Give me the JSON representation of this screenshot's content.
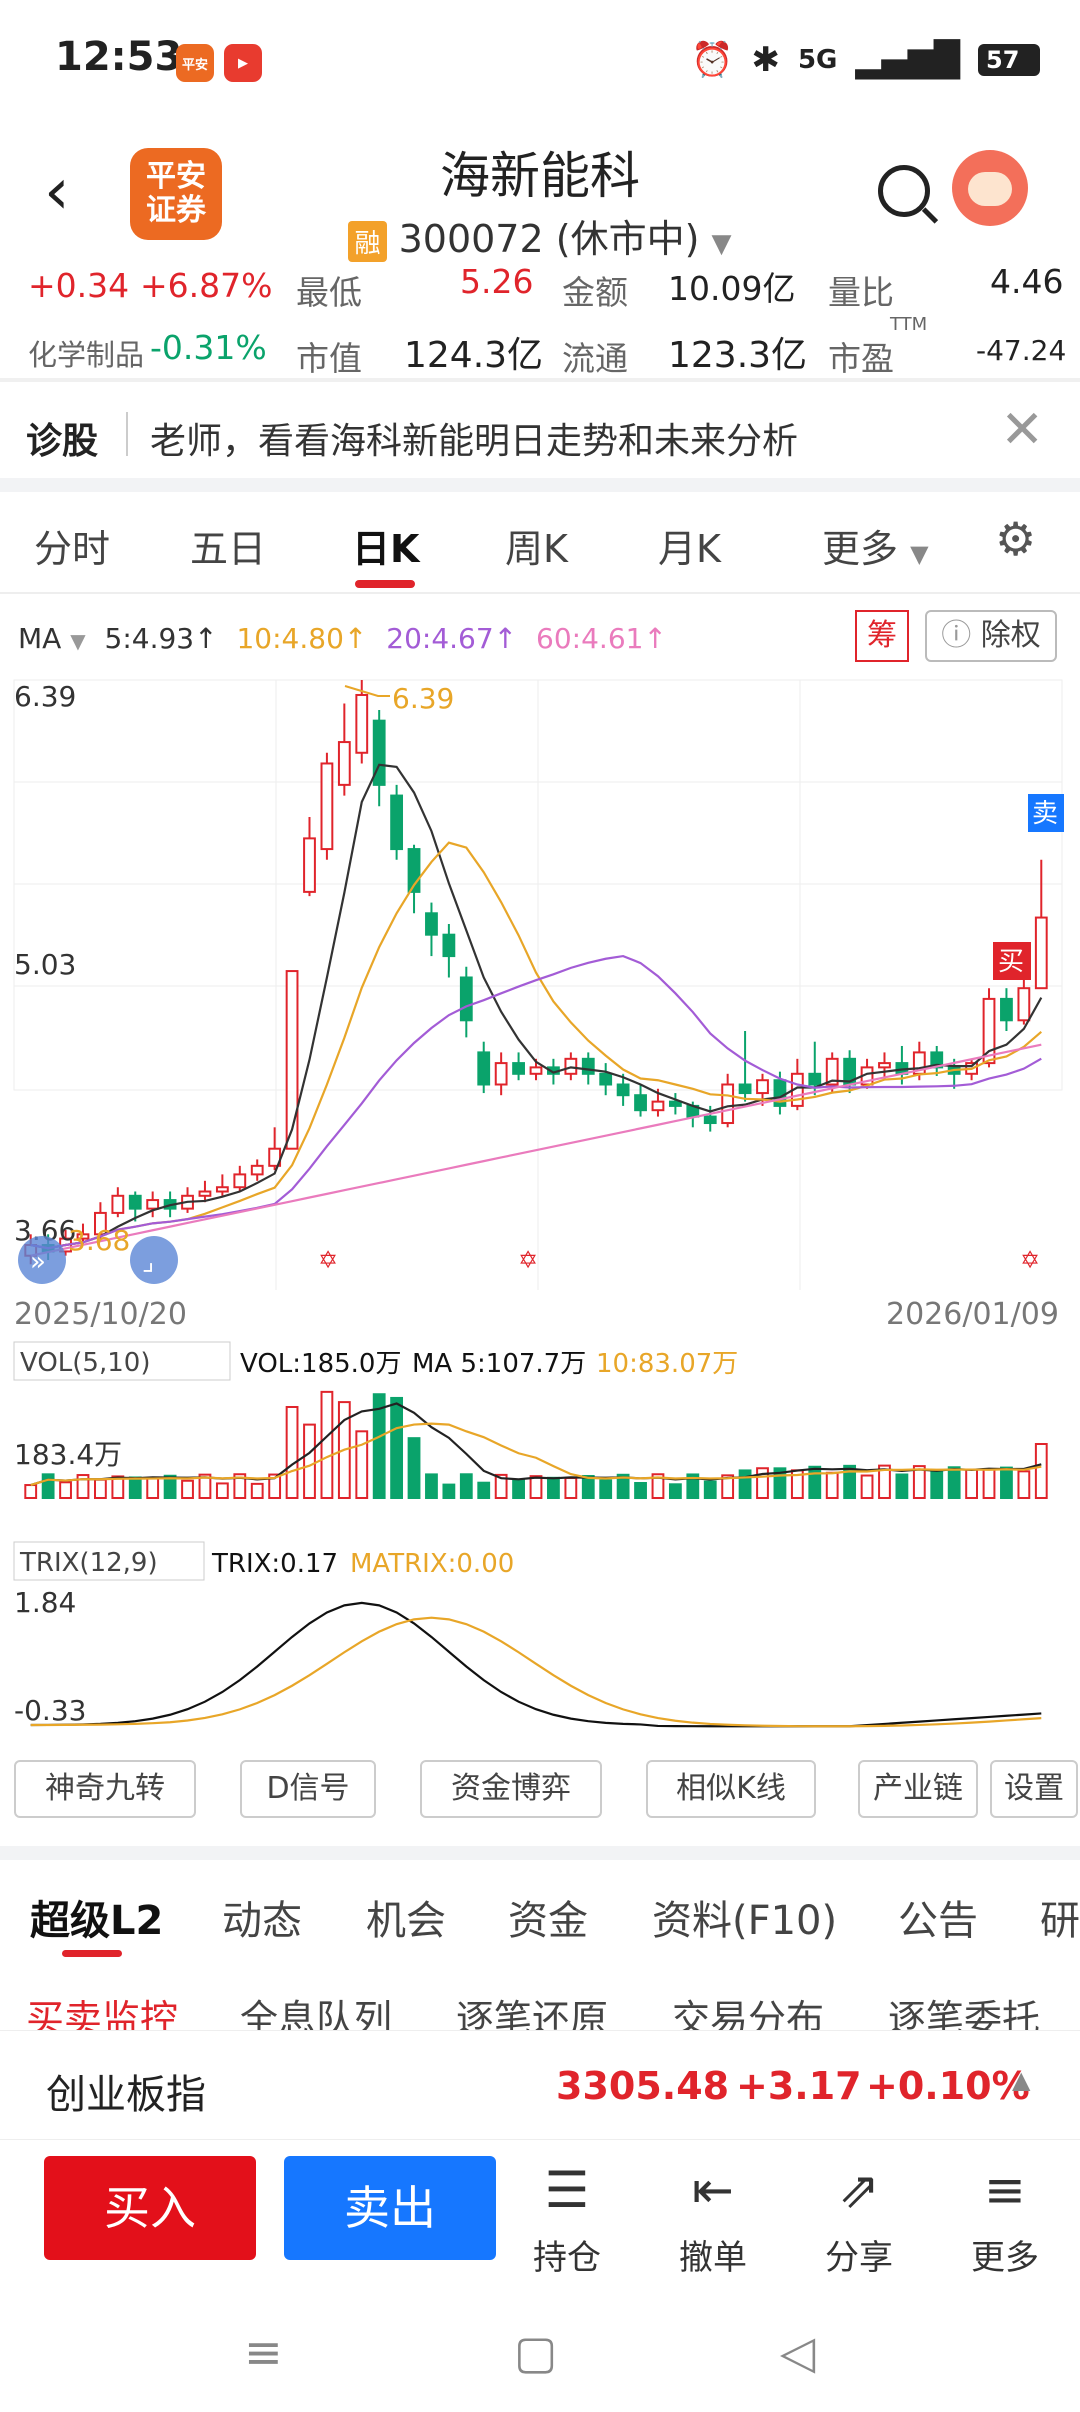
{
  "status": {
    "time": "12:53",
    "battery": "57",
    "signal": "5G"
  },
  "header": {
    "stock_name": "海新能科",
    "rong": "融",
    "code": "300072",
    "state": "(休市中)",
    "logo_text": "平安证券"
  },
  "quote": {
    "change": "+0.34",
    "change_pct": "+6.87%",
    "low_label": "最低",
    "low": "5.26",
    "amount_label": "金额",
    "amount": "10.09亿",
    "ratio_label": "量比",
    "ratio": "4.46",
    "sector": "化学制品",
    "sector_pct": "-0.31%",
    "mktcap_label": "市值",
    "mktcap": "124.3亿",
    "float_label": "流通",
    "float": "123.3亿",
    "pe_label": "市盈",
    "pe_sup": "TTM",
    "pe": "-47.24"
  },
  "diag": {
    "title": "诊股",
    "text": "老师，看看海科新能明日走势和未来分析"
  },
  "ktabs": [
    "分时",
    "五日",
    "日K",
    "周K",
    "月K",
    "更多"
  ],
  "ma": {
    "label": "MA",
    "ma5": "5:4.93↑",
    "ma10": "10:4.80↑",
    "ma20": "20:4.67↑",
    "ma60": "60:4.61↑",
    "chou": "筹",
    "chuquan": "除权"
  },
  "chart_data": {
    "type": "candlestick",
    "ylim": [
      3.68,
      6.39
    ],
    "y_ticks": [
      "6.39",
      "5.03",
      "3.66"
    ],
    "max_label": "6.39",
    "min_label": "3.68",
    "date_start": "2025/10/20",
    "date_end": "2026/01/09",
    "buy_label": "买",
    "sell_label": "卖",
    "colors": {
      "up": "#e0242b",
      "down": "#0aa36b",
      "ma5": "#333333",
      "ma10": "#e8a628",
      "ma20": "#a35cd6",
      "ma60": "#ea7bbd"
    }
  },
  "vol": {
    "label": "VOL(5,10)",
    "vol": "VOL:185.0万",
    "ma5": "MA 5:107.7万",
    "ma10": "10:83.07万",
    "tick": "183.4万"
  },
  "trix": {
    "label": "TRIX(12,9)",
    "trix": "TRIX:0.17",
    "matrix": "MATRIX:0.00",
    "top": "1.84",
    "bottom": "-0.33"
  },
  "tools": [
    "神奇九转",
    "D信号",
    "资金博弈",
    "相似K线",
    "产业链",
    "设置"
  ],
  "l2tabs": [
    "超级L2",
    "动态",
    "机会",
    "资金",
    "资料(F10)",
    "公告",
    "研"
  ],
  "subtabs": [
    "买卖监控",
    "全息队列",
    "逐笔还原",
    "交易分布",
    "逐笔委托"
  ],
  "index": {
    "name": "创业板指",
    "value": "3305.48",
    "change": "+3.17",
    "pct": "+0.10%"
  },
  "bottom": {
    "buy": "买入",
    "sell": "卖出",
    "hold": "持仓",
    "cancel": "撤单",
    "share": "分享",
    "more": "更多"
  }
}
